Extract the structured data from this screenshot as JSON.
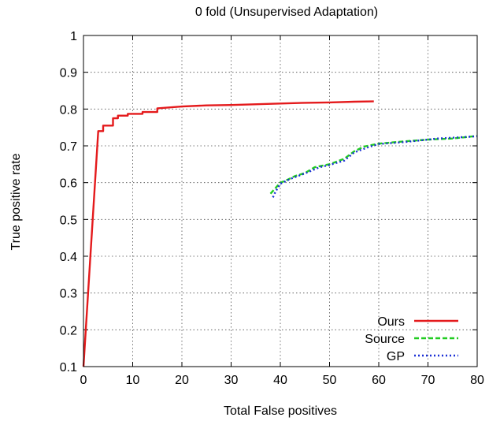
{
  "chart_data": {
    "type": "line",
    "title": "0 fold (Unsupervised Adaptation)",
    "xlabel": "Total False positives",
    "ylabel": "True positive rate",
    "xlim": [
      0,
      80
    ],
    "ylim": [
      0.1,
      1
    ],
    "xticks": [
      0,
      10,
      20,
      30,
      40,
      50,
      60,
      70,
      80
    ],
    "yticks": [
      0.1,
      0.2,
      0.3,
      0.4,
      0.5,
      0.6,
      0.7,
      0.8,
      0.9,
      1
    ],
    "xtick_labels": [
      "0",
      "10",
      "20",
      "30",
      "40",
      "50",
      "60",
      "70",
      "80"
    ],
    "ytick_labels": [
      "0.1",
      "0.2",
      "0.3",
      "0.4",
      "0.5",
      "0.6",
      "0.7",
      "0.8",
      "0.9",
      "1"
    ],
    "grid": true,
    "legend_position": "bottom-right",
    "series": [
      {
        "name": "Ours",
        "color": "#e41a1c",
        "style": "solid",
        "x": [
          0,
          3,
          3,
          4,
          4,
          6,
          6,
          7,
          7,
          9,
          9,
          12,
          12,
          15,
          15,
          20,
          25,
          30,
          40,
          45,
          50,
          55,
          59
        ],
        "y": [
          0.1,
          0.74,
          0.74,
          0.74,
          0.755,
          0.755,
          0.775,
          0.775,
          0.782,
          0.782,
          0.787,
          0.787,
          0.792,
          0.792,
          0.802,
          0.807,
          0.81,
          0.811,
          0.815,
          0.817,
          0.818,
          0.82,
          0.821
        ]
      },
      {
        "name": "Source",
        "color": "#22cc22",
        "style": "dashed",
        "x": [
          38,
          39,
          40,
          41,
          43,
          45,
          47,
          50,
          53,
          55,
          57,
          60,
          65,
          70,
          75,
          80
        ],
        "y": [
          0.57,
          0.585,
          0.6,
          0.605,
          0.618,
          0.626,
          0.642,
          0.65,
          0.665,
          0.685,
          0.698,
          0.706,
          0.712,
          0.717,
          0.72,
          0.727
        ]
      },
      {
        "name": "GP",
        "color": "#1a2fd6",
        "style": "dotted",
        "x": [
          38.5,
          39,
          40,
          42,
          45,
          48,
          50,
          53,
          55,
          58,
          60,
          65,
          70,
          72,
          75,
          80
        ],
        "y": [
          0.56,
          0.575,
          0.597,
          0.61,
          0.625,
          0.642,
          0.648,
          0.66,
          0.682,
          0.697,
          0.705,
          0.71,
          0.717,
          0.72,
          0.722,
          0.726
        ]
      }
    ]
  }
}
